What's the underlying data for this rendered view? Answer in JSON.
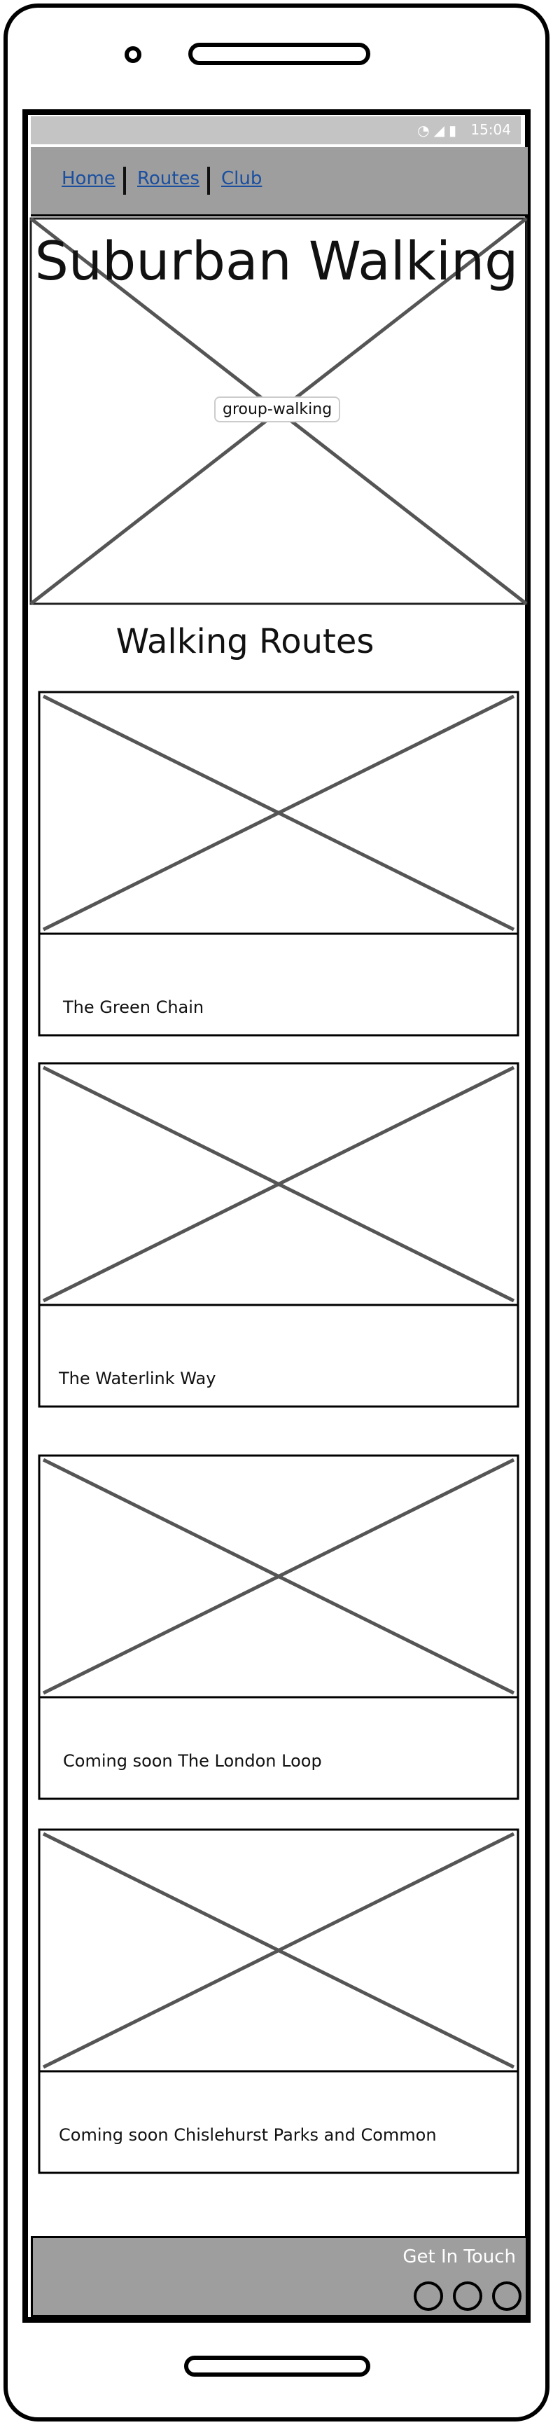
{
  "status_bar": {
    "time": "15:04",
    "icons": [
      "wifi-icon",
      "signal-icon",
      "battery-icon"
    ]
  },
  "nav": {
    "items": [
      {
        "label": "Home"
      },
      {
        "label": "Routes"
      },
      {
        "label": "Club"
      }
    ]
  },
  "hero": {
    "title": "Suburban Walking",
    "image_label": "group-walking"
  },
  "routes": {
    "heading": "Walking Routes",
    "cards": [
      {
        "title": "The Green Chain"
      },
      {
        "title": "The Waterlink Way"
      },
      {
        "title": "Coming soon The London Loop"
      },
      {
        "title": "Coming soon Chislehurst Parks and Common"
      }
    ]
  },
  "footer": {
    "label": "Get In Touch",
    "icons": [
      "social-icon-1",
      "social-icon-2",
      "social-icon-3"
    ]
  },
  "colors": {
    "nav_bg": "#9e9e9e",
    "status_bg": "#c4c4c4",
    "link": "#1a4fa0",
    "footer_bg": "#9e9e9e"
  }
}
